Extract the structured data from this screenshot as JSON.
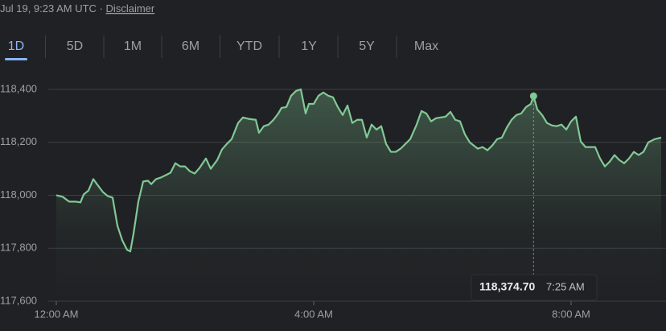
{
  "header": {
    "timestamp": "Jul 19, 9:23 AM UTC",
    "separator": "·",
    "disclaimer": "Disclaimer"
  },
  "tabs": [
    "1D",
    "5D",
    "1M",
    "6M",
    "YTD",
    "1Y",
    "5Y",
    "Max"
  ],
  "selected_tab": 0,
  "chart_data": {
    "type": "line",
    "x": [
      0,
      6,
      12,
      18,
      22.5,
      25.5,
      30,
      34.5,
      39,
      43.5,
      48,
      52.5,
      57,
      61.5,
      66,
      69,
      72,
      76.5,
      81,
      85.5,
      88.5,
      93,
      97.5,
      102,
      106.5,
      111,
      115.5,
      120,
      124.5,
      129,
      133.5,
      139.5,
      144,
      150,
      154.5,
      159,
      163.5,
      169.5,
      174,
      180,
      186,
      189,
      193.5,
      198,
      202.5,
      207,
      210,
      214.5,
      219,
      223.5,
      228,
      232.5,
      235.5,
      240,
      244.5,
      249,
      253.5,
      258,
      262.5,
      267,
      271.5,
      276,
      280.5,
      285,
      289.5,
      294,
      298.5,
      303,
      307.5,
      312,
      316.5,
      321,
      325.5,
      330,
      336,
      340.5,
      345,
      349.5,
      354,
      358.5,
      363,
      367.5,
      372,
      376.5,
      381,
      385.5,
      393,
      397.5,
      402,
      406.5,
      411,
      415.5,
      420,
      424.5,
      429,
      433.5,
      438,
      442.5,
      445,
      448.5,
      453,
      457.5,
      462,
      466.5,
      471,
      475.5,
      480,
      484.5,
      489,
      493.5,
      498,
      502.5,
      507,
      511.5,
      516,
      520.5,
      525,
      529.5,
      534,
      538.5,
      543,
      547.5,
      552,
      558,
      564
    ],
    "series": [
      {
        "color": "#81c995",
        "values": [
          118000,
          117994,
          117976,
          117976,
          117973,
          118003,
          118018,
          118061,
          118036,
          118012,
          117997,
          117991,
          117885,
          117830,
          117794,
          117788,
          117855,
          117976,
          118052,
          118055,
          118042,
          118061,
          118067,
          118076,
          118085,
          118121,
          118109,
          118109,
          118091,
          118082,
          118103,
          118139,
          118100,
          118133,
          118173,
          118194,
          118212,
          118273,
          118294,
          118288,
          118285,
          118236,
          118261,
          118267,
          118285,
          118309,
          118330,
          118333,
          118376,
          118394,
          118400,
          118309,
          118345,
          118345,
          118376,
          118388,
          118376,
          118370,
          118333,
          118303,
          118339,
          118273,
          118285,
          118285,
          118218,
          118267,
          118248,
          118261,
          118194,
          118164,
          118164,
          118176,
          118194,
          118212,
          118267,
          118318,
          118309,
          118279,
          118291,
          118294,
          118297,
          118315,
          118285,
          118279,
          118230,
          118200,
          118176,
          118182,
          118170,
          118188,
          118212,
          118218,
          118255,
          118285,
          118303,
          118309,
          118333,
          118345,
          118374.7,
          118324,
          118303,
          118273,
          118264,
          118261,
          118267,
          118248,
          118279,
          118297,
          118203,
          118182,
          118182,
          118182,
          118139,
          118109,
          118127,
          118152,
          118133,
          118121,
          118139,
          118164,
          118152,
          118164,
          118200,
          118212,
          118218
        ]
      }
    ],
    "xlim": [
      0,
      568.5
    ],
    "xticks": [
      {
        "value": 0,
        "label": "12:00 AM"
      },
      {
        "value": 240,
        "label": "4:00 AM"
      },
      {
        "value": 480,
        "label": "8:00 AM"
      }
    ],
    "ylim": [
      117600,
      118450
    ],
    "yticks": [
      {
        "value": 117600,
        "label": "117,600"
      },
      {
        "value": 117800,
        "label": "117,800"
      },
      {
        "value": 118000,
        "label": "118,000"
      },
      {
        "value": 118200,
        "label": "118,200"
      },
      {
        "value": 118400,
        "label": "118,400"
      }
    ],
    "grid": true,
    "tooltip": {
      "index": 98,
      "value": "118,374.70",
      "time": "7:25 AM"
    }
  }
}
